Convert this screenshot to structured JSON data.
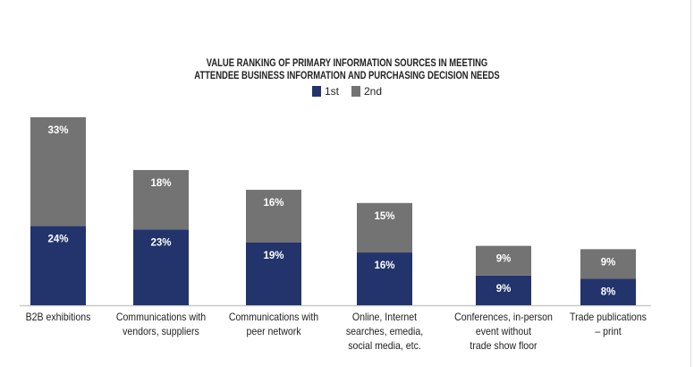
{
  "chart_data": {
    "type": "bar",
    "stacked": true,
    "title": "VALUE RANKING OF PRIMARY INFORMATION SOURCES IN  MEETING ATTENDEE BUSINESS INFORMATION AND PURCHASING DECISION NEEDS",
    "title_lines": [
      "VALUE RANKING OF PRIMARY INFORMATION SOURCES IN  MEETING",
      "ATTENDEE BUSINESS INFORMATION AND PURCHASING DECISION NEEDS"
    ],
    "categories": [
      "B2B exhibitions",
      "Communications with vendors, suppliers",
      "Communications with peer network",
      "Online, Internet searches, emedia, social media, etc.",
      "Conferences, in-person event without trade show floor",
      "Trade publications – print"
    ],
    "category_lines": [
      [
        "B2B exhibitions"
      ],
      [
        "Communications with",
        "vendors, suppliers"
      ],
      [
        "Communications with",
        "peer network"
      ],
      [
        "Online, Internet",
        "searches, emedia,",
        "social media, etc."
      ],
      [
        "Conferences, in-person",
        "event without",
        "trade show floor"
      ],
      [
        "Trade publications",
        "– print"
      ]
    ],
    "series": [
      {
        "name": "1st",
        "color": "#22346b",
        "values": [
          24,
          23,
          19,
          16,
          9,
          8
        ]
      },
      {
        "name": "2nd",
        "color": "#737373",
        "values": [
          33,
          18,
          16,
          15,
          9,
          9
        ]
      }
    ],
    "unit": "%",
    "legend": "top-center",
    "grid": false,
    "ylim": [
      0,
      57
    ]
  }
}
